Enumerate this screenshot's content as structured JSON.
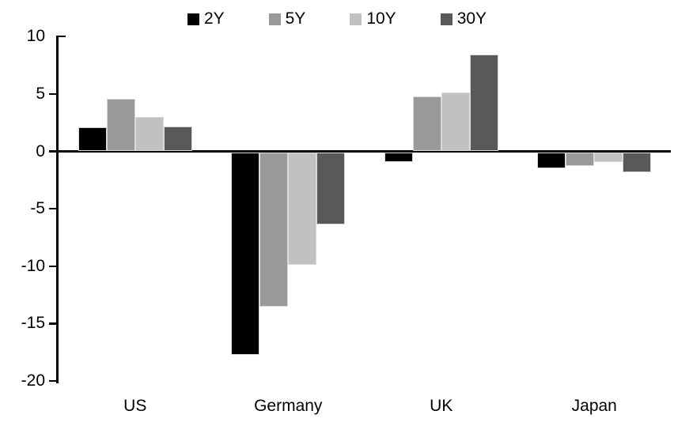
{
  "chart_data": {
    "type": "bar",
    "title": "",
    "xlabel": "",
    "ylabel": "",
    "categories": [
      "US",
      "Germany",
      "UK",
      "Japan"
    ],
    "series": [
      {
        "name": "2Y",
        "color": "#000000",
        "values": [
          2.1,
          -17.7,
          -0.9,
          -1.5
        ]
      },
      {
        "name": "5Y",
        "color": "#999999",
        "values": [
          4.6,
          -13.5,
          4.8,
          -1.3
        ]
      },
      {
        "name": "10Y",
        "color": "#c1c1c1",
        "values": [
          3.0,
          -9.9,
          5.1,
          -0.9
        ]
      },
      {
        "name": "30Y",
        "color": "#595959",
        "values": [
          2.2,
          -6.4,
          8.4,
          -1.8
        ]
      }
    ],
    "ylim": [
      -20,
      10
    ],
    "yticks": [
      10,
      5,
      0,
      -5,
      -10,
      -15,
      -20
    ],
    "grid": false,
    "legend_position": "top-center",
    "axis_color": "#000000",
    "bar_border_color": "#d9d9d9"
  }
}
